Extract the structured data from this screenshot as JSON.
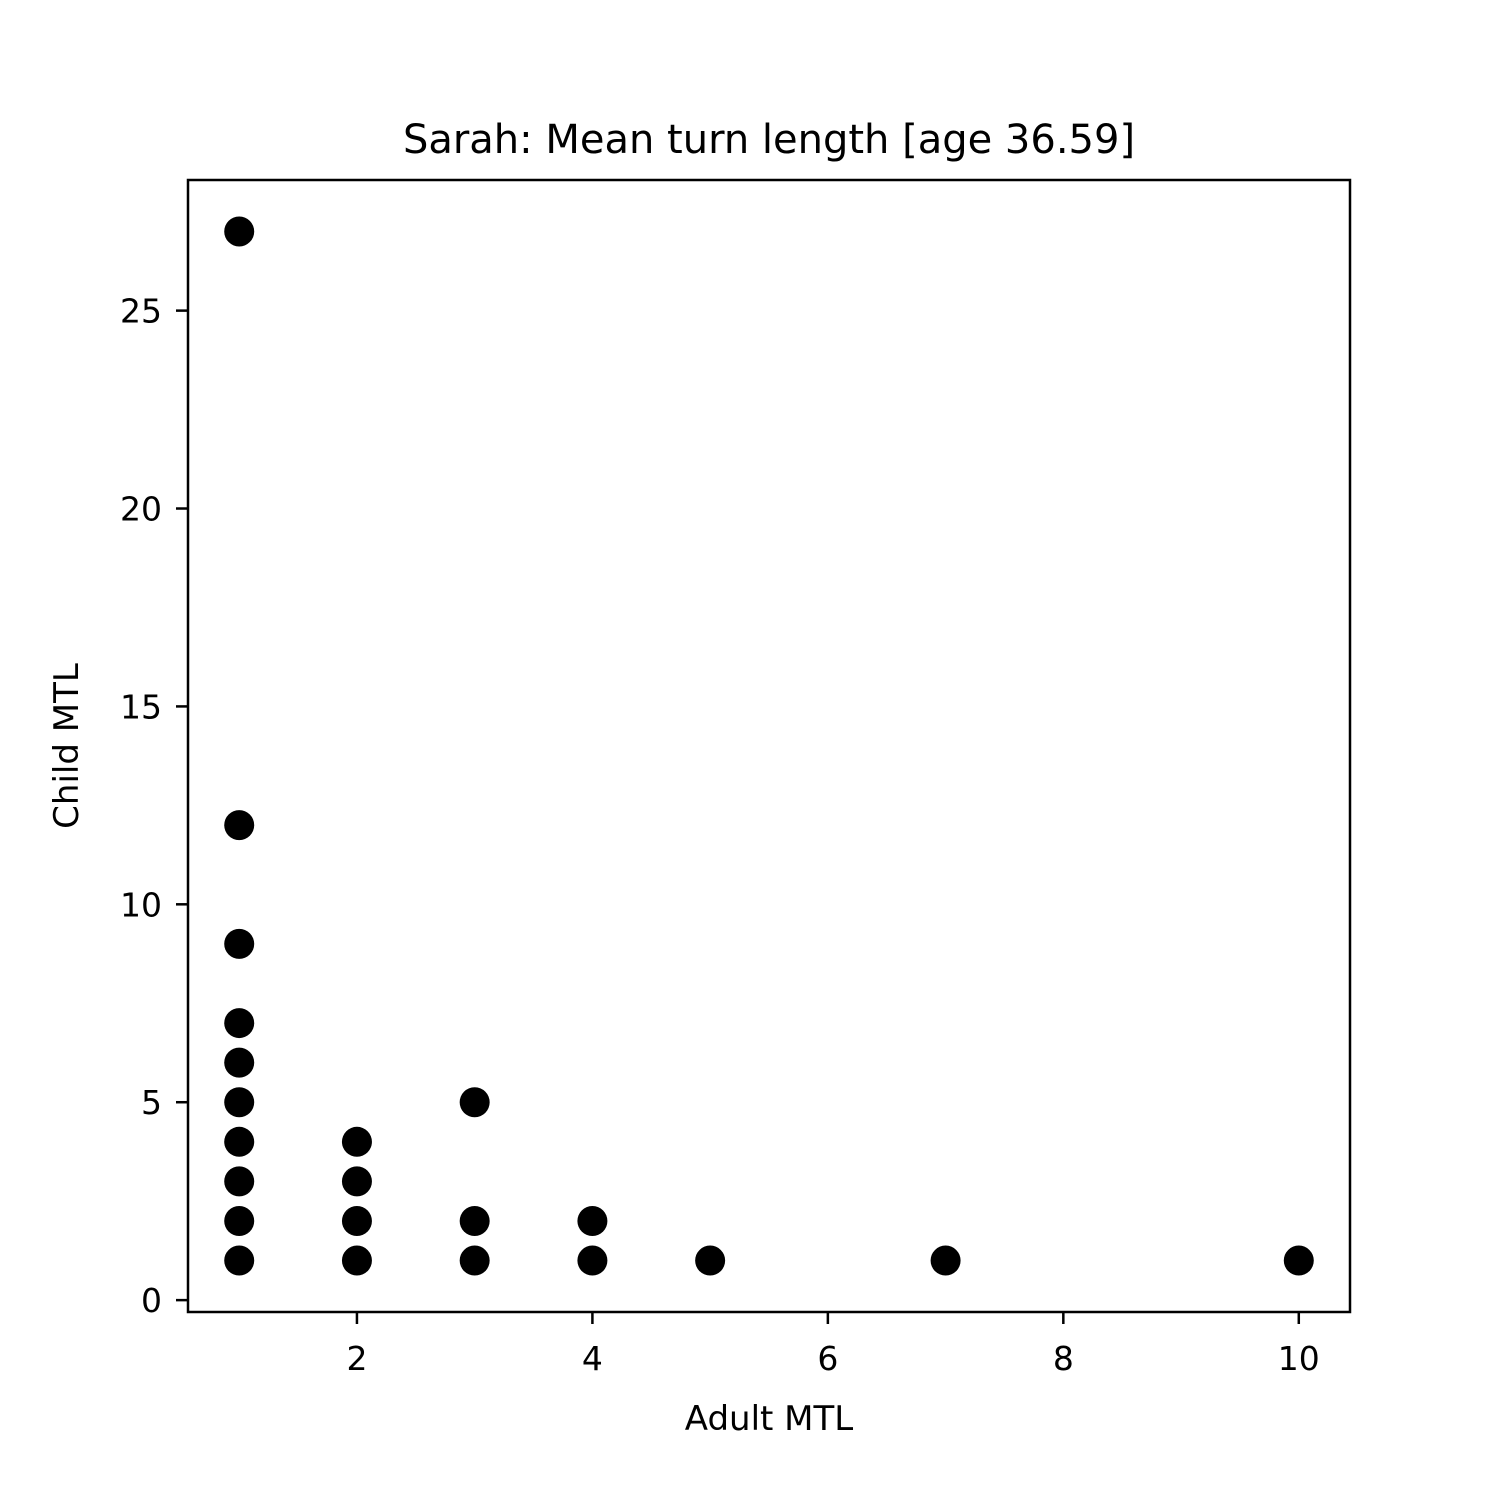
{
  "chart_data": {
    "type": "scatter",
    "title": "Sarah: Mean turn length [age 36.59]",
    "xlabel": "Adult MTL",
    "ylabel": "Child MTL",
    "xlim": [
      0.565,
      10.435
    ],
    "ylim": [
      -0.3,
      28.3
    ],
    "xticks": [
      2,
      4,
      6,
      8,
      10
    ],
    "yticks": [
      0,
      5,
      10,
      15,
      20,
      25
    ],
    "grid": false,
    "legend": "none",
    "marker_color": "#000000",
    "points": [
      {
        "x": 1,
        "y": 27
      },
      {
        "x": 1,
        "y": 12
      },
      {
        "x": 1,
        "y": 9
      },
      {
        "x": 1,
        "y": 7
      },
      {
        "x": 1,
        "y": 6
      },
      {
        "x": 1,
        "y": 5
      },
      {
        "x": 1,
        "y": 4
      },
      {
        "x": 1,
        "y": 3
      },
      {
        "x": 1,
        "y": 2
      },
      {
        "x": 1,
        "y": 1
      },
      {
        "x": 2,
        "y": 4
      },
      {
        "x": 2,
        "y": 3
      },
      {
        "x": 2,
        "y": 2
      },
      {
        "x": 2,
        "y": 1
      },
      {
        "x": 3,
        "y": 5
      },
      {
        "x": 3,
        "y": 2
      },
      {
        "x": 3,
        "y": 1
      },
      {
        "x": 4,
        "y": 2
      },
      {
        "x": 4,
        "y": 1
      },
      {
        "x": 5,
        "y": 1
      },
      {
        "x": 7,
        "y": 1
      },
      {
        "x": 10,
        "y": 1
      }
    ]
  }
}
